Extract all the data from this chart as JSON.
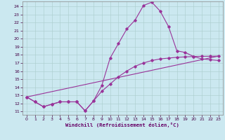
{
  "bg_color": "#cbe8f0",
  "line_color": "#993399",
  "xlabel": "Windchill (Refroidissement éolien,°C)",
  "xlim": [
    -0.5,
    23.5
  ],
  "ylim": [
    10.6,
    24.6
  ],
  "xticks": [
    0,
    1,
    2,
    3,
    4,
    5,
    6,
    7,
    8,
    9,
    10,
    11,
    12,
    13,
    14,
    15,
    16,
    17,
    18,
    19,
    20,
    21,
    22,
    23
  ],
  "yticks": [
    11,
    12,
    13,
    14,
    15,
    16,
    17,
    18,
    19,
    20,
    21,
    22,
    23,
    24
  ],
  "line1_x": [
    0,
    1,
    2,
    3,
    4,
    5,
    6,
    7,
    8,
    9,
    10,
    11,
    12,
    13,
    14,
    15,
    16,
    17,
    18,
    19,
    20,
    21,
    22,
    23
  ],
  "line1_y": [
    12.8,
    12.2,
    11.6,
    11.9,
    12.2,
    12.2,
    12.2,
    11.1,
    12.3,
    14.2,
    17.6,
    19.4,
    21.2,
    22.3,
    24.1,
    24.5,
    23.4,
    21.5,
    18.5,
    18.3,
    17.8,
    17.5,
    17.4,
    17.3
  ],
  "line2_x": [
    0,
    1,
    2,
    3,
    4,
    5,
    6,
    7,
    8,
    9,
    10,
    11,
    12,
    13,
    14,
    15,
    16,
    17,
    18,
    19,
    20,
    21,
    22,
    23
  ],
  "line2_y": [
    12.8,
    12.2,
    11.6,
    11.9,
    12.2,
    12.2,
    12.2,
    11.1,
    12.3,
    13.5,
    14.4,
    15.3,
    16.0,
    16.6,
    17.0,
    17.3,
    17.5,
    17.6,
    17.7,
    17.75,
    17.8,
    17.82,
    17.83,
    17.85
  ],
  "line3_x": [
    0,
    23
  ],
  "line3_y": [
    12.8,
    17.85
  ]
}
